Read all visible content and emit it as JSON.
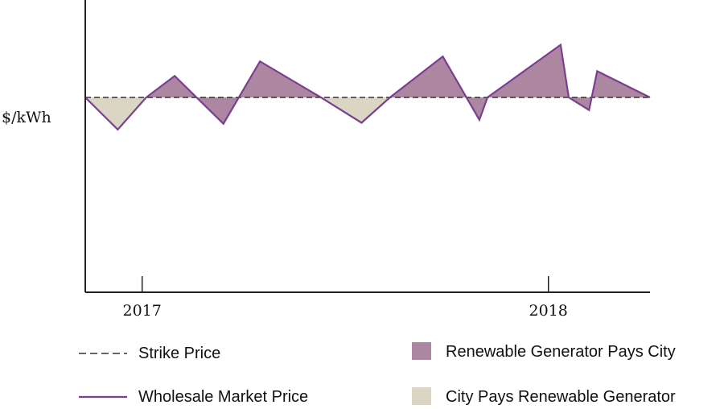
{
  "chart_data": {
    "type": "area",
    "title": "",
    "xlabel": "",
    "ylabel": "$/kWh",
    "x_tick_labels": [
      "2017",
      "2018"
    ],
    "x_ticks": [
      2017,
      2018
    ],
    "xlim": [
      2016.86,
      2018.25
    ],
    "ylim": [
      -2.0,
      1.0
    ],
    "grid": false,
    "legend_position": "bottom",
    "series": [
      {
        "name": "Strike Price",
        "style": "dashed",
        "color": "#333333",
        "x": [
          2016.86,
          2018.25
        ],
        "y": [
          0,
          0
        ]
      },
      {
        "name": "Wholesale Market Price",
        "style": "solid",
        "color": "#7a3f8f",
        "x": [
          2016.86,
          2016.94,
          2017.01,
          2017.08,
          2017.2,
          2017.29,
          2017.44,
          2017.54,
          2017.61,
          2017.74,
          2017.83,
          2017.85,
          2018.03,
          2018.05,
          2018.1,
          2018.12,
          2018.25
        ],
        "y": [
          0,
          -0.33,
          0,
          0.22,
          -0.27,
          0.37,
          0,
          -0.26,
          0,
          0.42,
          -0.23,
          0,
          0.54,
          0,
          -0.13,
          0.27,
          0
        ]
      }
    ],
    "fill_regions": [
      {
        "name": "Renewable Generator Pays City",
        "color": "#ad87a2",
        "condition": "price above strike"
      },
      {
        "name": "City Pays Renewable Generator",
        "color": "#dbd5c3",
        "condition": "price below strike"
      }
    ]
  },
  "legend": {
    "strike_price": "Strike Price",
    "wholesale_price": "Wholesale Market Price",
    "generator_pays": "Renewable Generator Pays City",
    "city_pays": "City Pays Renewable Generator"
  },
  "colors": {
    "price_line": "#7a3f8f",
    "strike_line": "#333333",
    "generator_pays_fill": "#ad87a2",
    "city_pays_fill": "#dbd5c3",
    "axis": "#222222"
  }
}
